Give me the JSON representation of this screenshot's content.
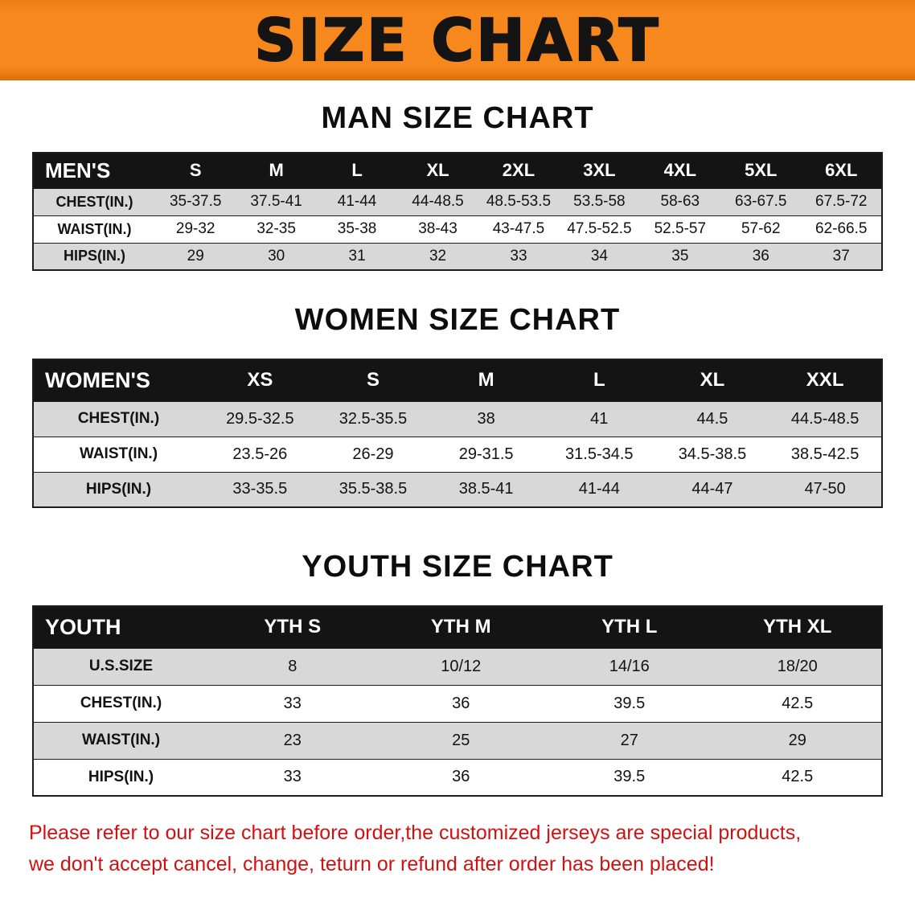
{
  "banner": {
    "title": "SIZE CHART"
  },
  "sections": [
    {
      "id": "men",
      "heading": "MAN SIZE CHART",
      "table": {
        "header": [
          "MEN'S",
          "S",
          "M",
          "L",
          "XL",
          "2XL",
          "3XL",
          "4XL",
          "5XL",
          "6XL"
        ],
        "rows": [
          [
            "CHEST(IN.)",
            "35-37.5",
            "37.5-41",
            "41-44",
            "44-48.5",
            "48.5-53.5",
            "53.5-58",
            "58-63",
            "63-67.5",
            "67.5-72"
          ],
          [
            "WAIST(IN.)",
            "29-32",
            "32-35",
            "35-38",
            "38-43",
            "43-47.5",
            "47.5-52.5",
            "52.5-57",
            "57-62",
            "62-66.5"
          ],
          [
            "HIPS(IN.)",
            "29",
            "30",
            "31",
            "32",
            "33",
            "34",
            "35",
            "36",
            "37"
          ]
        ]
      }
    },
    {
      "id": "women",
      "heading": "WOMEN SIZE CHART",
      "table": {
        "header": [
          "WOMEN'S",
          "XS",
          "S",
          "M",
          "L",
          "XL",
          "XXL"
        ],
        "rows": [
          [
            "CHEST(IN.)",
            "29.5-32.5",
            "32.5-35.5",
            "38",
            "41",
            "44.5",
            "44.5-48.5"
          ],
          [
            "WAIST(IN.)",
            "23.5-26",
            "26-29",
            "29-31.5",
            "31.5-34.5",
            "34.5-38.5",
            "38.5-42.5"
          ],
          [
            "HIPS(IN.)",
            "33-35.5",
            "35.5-38.5",
            "38.5-41",
            "41-44",
            "44-47",
            "47-50"
          ]
        ]
      }
    },
    {
      "id": "youth",
      "heading": "YOUTH SIZE CHART",
      "table": {
        "header": [
          "YOUTH",
          "YTH S",
          "YTH M",
          "YTH L",
          "YTH XL"
        ],
        "rows": [
          [
            "U.S.SIZE",
            "8",
            "10/12",
            "14/16",
            "18/20"
          ],
          [
            "CHEST(IN.)",
            "33",
            "36",
            "39.5",
            "42.5"
          ],
          [
            "WAIST(IN.)",
            "23",
            "25",
            "27",
            "29"
          ],
          [
            "HIPS(IN.)",
            "33",
            "36",
            "39.5",
            "42.5"
          ]
        ]
      }
    }
  ],
  "footer": {
    "line1": "Please refer to our size chart before order,the customized jerseys are special products,",
    "line2": "we don't accept cancel, change, teturn or refund after order has been placed!"
  },
  "colors": {
    "banner_orange": "#F6881D",
    "header_black": "#141414",
    "row_gray": "#D8D8D8",
    "note_red": "#D01111"
  }
}
